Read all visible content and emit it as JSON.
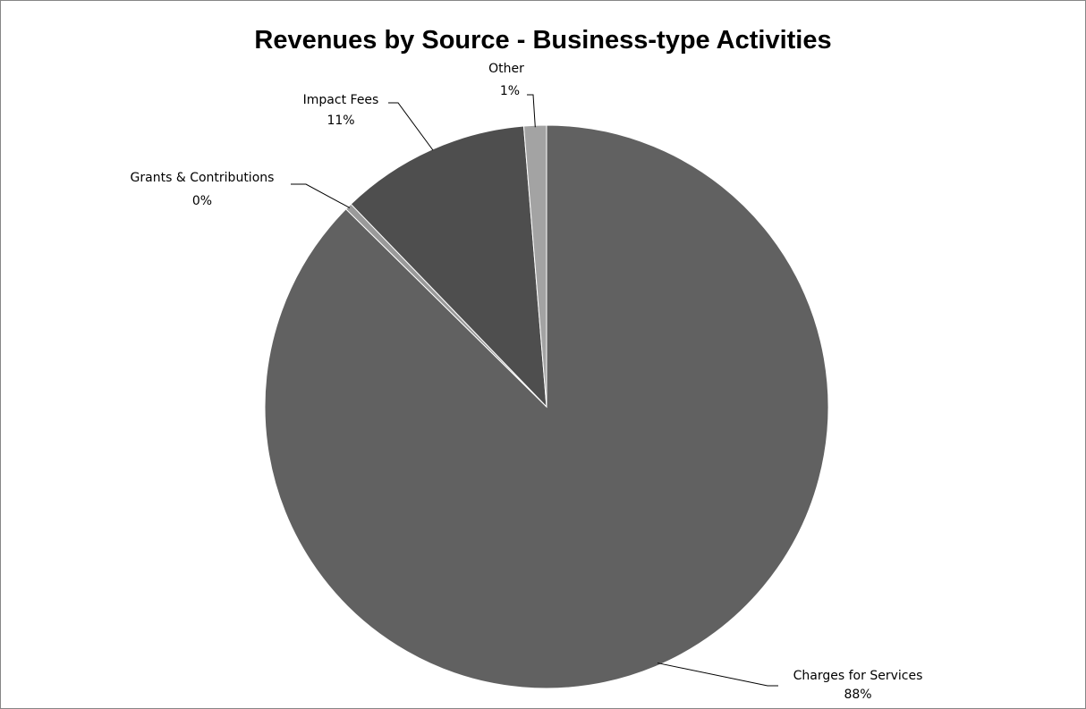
{
  "chart_data": {
    "type": "pie",
    "title": "Revenues by Source - Business-type Activities",
    "slices": [
      {
        "label": "Charges for Services",
        "value": 88,
        "percent_label": "88%",
        "color": "#616161"
      },
      {
        "label": "Grants & Contributions",
        "value": 0.4,
        "percent_label": "0%",
        "color": "#9a9a9a"
      },
      {
        "label": "Impact Fees",
        "value": 11,
        "percent_label": "11%",
        "color": "#4e4e4e"
      },
      {
        "label": "Other",
        "value": 1.3,
        "percent_label": "1%",
        "color": "#a3a3a3"
      }
    ],
    "legend": "none",
    "data_labels": "outside-with-leader-lines"
  }
}
